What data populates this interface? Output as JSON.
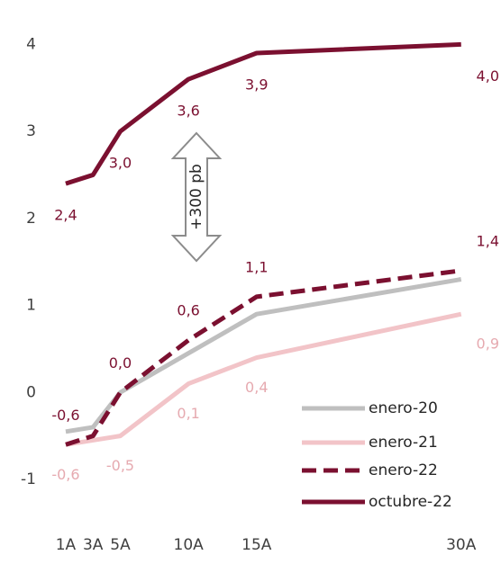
{
  "chart_data": {
    "type": "line",
    "x": [
      1,
      3,
      5,
      10,
      15,
      30
    ],
    "xlim": [
      -1,
      32
    ],
    "xticks": [
      {
        "value": 1,
        "label": "1A"
      },
      {
        "value": 3,
        "label": "3A"
      },
      {
        "value": 5,
        "label": "5A"
      },
      {
        "value": 10,
        "label": "10A"
      },
      {
        "value": 15,
        "label": "15A"
      },
      {
        "value": 30,
        "label": "30A"
      }
    ],
    "ylim": [
      -1.3,
      4.2
    ],
    "yticks": [
      {
        "value": -1,
        "label": "-1"
      },
      0,
      1,
      2,
      3,
      4
    ],
    "annotation": "+300 pb",
    "series": [
      {
        "name": "enero-20",
        "color": "#bfbfbf",
        "style": "solid",
        "values": [
          -0.45,
          -0.4,
          0.0,
          0.45,
          0.9,
          1.3
        ]
      },
      {
        "name": "enero-21",
        "color": "#f2c4c8",
        "style": "solid",
        "values": [
          -0.6,
          -0.55,
          -0.5,
          0.1,
          0.4,
          0.9
        ],
        "value_labels": [
          "-0,6",
          null,
          "-0,5",
          "0,1",
          "0,4",
          "0,9"
        ]
      },
      {
        "name": "enero-22",
        "color": "#7b1030",
        "style": "dashed",
        "values": [
          -0.6,
          -0.5,
          0.0,
          0.6,
          1.1,
          1.4
        ],
        "value_labels": [
          "-0,6",
          null,
          "0,0",
          "0,6",
          "1,1",
          "1,4"
        ]
      },
      {
        "name": "octubre-22",
        "color": "#7b1030",
        "style": "solid",
        "values": [
          2.4,
          2.5,
          3.0,
          3.6,
          3.9,
          4.0
        ],
        "value_labels": [
          "2,4",
          null,
          "3,0",
          "3,6",
          "3,9",
          "4,0"
        ]
      }
    ]
  }
}
